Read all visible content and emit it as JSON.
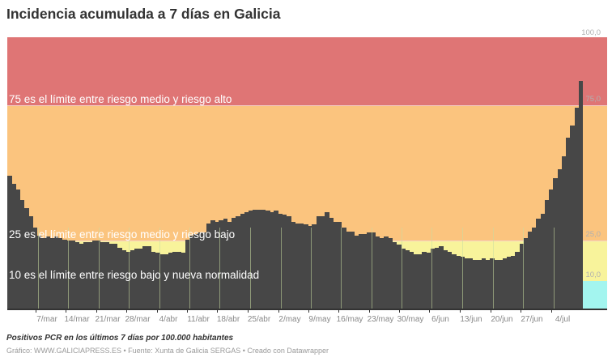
{
  "title": "Incidencia acumulada a 7 días en Galicia",
  "subtitle": "Positivos PCR en los últimos 7 días por 100.000 habitantes",
  "credits": "Gráfico: WWW.GALICIAPRESS.ES • Fuente: Xunta de Galicia SERGAS • Creado con Datawrapper",
  "annotations": {
    "a75": "75 es el límite entre riesgo medio y riesgo alto",
    "a25": "25 es el límite entre riesgo medio y riesgo bajo",
    "a10": "10 es el límite entre riesgo bajo y nueva normalidad"
  },
  "y_labels": {
    "y100": "100,0",
    "y75": "75,0",
    "y25": "25,0",
    "y10": "10,0"
  },
  "colors": {
    "high": "#df7575",
    "medium": "#fbc47e",
    "low": "#f8f39b",
    "normal": "#a3f5ef",
    "bar": "#474747",
    "threshold_line": "#f5d0c8"
  },
  "chart_data": {
    "type": "bar",
    "title": "Incidencia acumulada a 7 días en Galicia",
    "subtitle": "Positivos PCR en los últimos 7 días por 100.000 habitantes",
    "xlabel": "",
    "ylabel": "",
    "ylim": [
      0,
      100
    ],
    "grid": false,
    "y_ticks": [
      "10,0",
      "25,0",
      "75,0",
      "100,0"
    ],
    "x_ticks": [
      "7/mar",
      "14/mar",
      "21/mar",
      "28/mar",
      "4/abr",
      "11/abr",
      "18/abr",
      "25/abr",
      "2/may",
      "9/may",
      "16/may",
      "23/may",
      "30/may",
      "6/jun",
      "13/jun",
      "20/jun",
      "27/jun",
      "4/jul"
    ],
    "bands": [
      {
        "from": 75,
        "to": 100,
        "label": "riesgo alto",
        "color": "#df7575"
      },
      {
        "from": 25,
        "to": 75,
        "label": "riesgo medio",
        "color": "#fbc47e"
      },
      {
        "from": 10,
        "to": 25,
        "label": "riesgo bajo",
        "color": "#f8f39b"
      },
      {
        "from": 0,
        "to": 10,
        "label": "nueva normalidad",
        "color": "#a3f5ef"
      }
    ],
    "annotations": [
      {
        "y": 75,
        "text": "75 es el límite entre riesgo medio y riesgo alto"
      },
      {
        "y": 25,
        "text": "25 es el límite entre riesgo medio y riesgo bajo"
      },
      {
        "y": 10,
        "text": "10 es el límite entre riesgo bajo y nueva normalidad"
      }
    ],
    "start_date": "28/feb",
    "values": [
      49.0,
      46.0,
      44.0,
      40.0,
      37.0,
      34.0,
      30.0,
      27.0,
      26.0,
      26.5,
      26.0,
      26.5,
      26.0,
      25.5,
      25.0,
      25.0,
      24.5,
      24.0,
      24.5,
      24.5,
      25.0,
      25.0,
      24.5,
      24.5,
      24.0,
      24.0,
      22.5,
      21.5,
      21.0,
      21.5,
      22.0,
      22.0,
      23.0,
      23.0,
      21.0,
      20.5,
      20.0,
      20.0,
      20.5,
      21.0,
      21.0,
      20.5,
      25.5,
      27.0,
      27.5,
      28.0,
      28.0,
      31.5,
      32.5,
      32.0,
      32.5,
      33.0,
      32.0,
      33.5,
      34.0,
      35.0,
      35.5,
      36.0,
      36.5,
      36.5,
      36.5,
      36.0,
      35.5,
      36.0,
      35.0,
      34.5,
      34.0,
      32.0,
      31.5,
      31.5,
      31.0,
      30.5,
      31.0,
      34.0,
      34.0,
      35.5,
      33.5,
      32.0,
      32.0,
      30.0,
      28.5,
      28.5,
      27.0,
      27.5,
      27.5,
      28.0,
      28.0,
      26.5,
      26.0,
      26.5,
      26.0,
      24.5,
      23.5,
      22.0,
      21.5,
      21.0,
      20.0,
      20.0,
      21.0,
      20.5,
      22.0,
      22.5,
      23.0,
      21.5,
      21.0,
      20.0,
      19.5,
      19.0,
      18.5,
      18.5,
      18.0,
      18.0,
      18.5,
      18.0,
      18.5,
      18.0,
      18.0,
      18.5,
      19.0,
      19.5,
      21.0,
      24.0,
      26.0,
      28.5,
      30.0,
      33.0,
      35.0,
      40.0,
      44.0,
      48.0,
      51.5,
      56.0,
      63.0,
      67.5,
      74.0,
      84.0
    ]
  }
}
